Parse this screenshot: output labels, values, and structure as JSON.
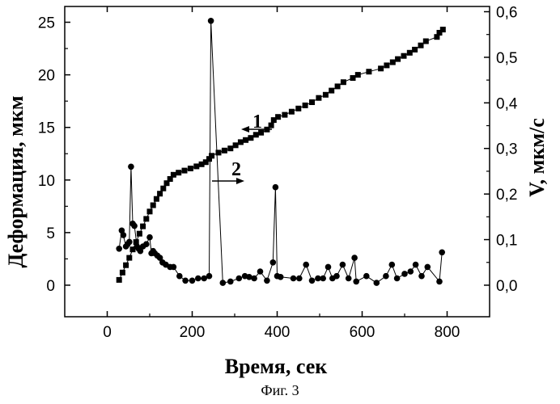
{
  "caption": "Фиг. 3",
  "chart_data": {
    "type": "scatter",
    "xlabel": "Время, сек",
    "ylabel_left": "Деформация, мкм",
    "ylabel_right": "V, мкм/c",
    "xlim": [
      -100,
      900
    ],
    "ylim_left": [
      -3,
      26.5
    ],
    "ylim_right": [
      -0.0692,
      0.6115
    ],
    "x_ticks": [
      0,
      200,
      400,
      600,
      800
    ],
    "x_tick_labels": [
      "0",
      "200",
      "400",
      "600",
      "800"
    ],
    "y_left_ticks": [
      0,
      5,
      10,
      15,
      20,
      25
    ],
    "y_left_tick_labels": [
      "0",
      "5",
      "10",
      "15",
      "20",
      "25"
    ],
    "y_right_ticks": [
      0,
      0.1,
      0.2,
      0.3,
      0.4,
      0.5,
      0.6
    ],
    "y_right_tick_labels": [
      "0,0",
      "0,1",
      "0,2",
      "0,3",
      "0,4",
      "0,5",
      "0,6"
    ],
    "grid": false,
    "legend": "none",
    "annotations": [
      {
        "text": "1",
        "points_to": "left axis"
      },
      {
        "text": "2",
        "points_to": "right axis"
      }
    ],
    "series": [
      {
        "label": "1",
        "axis": "left",
        "marker": "square",
        "x": [
          28,
          36,
          44,
          52,
          60,
          68,
          76,
          84,
          92,
          100,
          108,
          116,
          124,
          132,
          140,
          148,
          156,
          168,
          182,
          196,
          210,
          222,
          232,
          240,
          246,
          262,
          276,
          290,
          302,
          314,
          326,
          338,
          350,
          362,
          376,
          386,
          392,
          402,
          418,
          434,
          450,
          466,
          482,
          498,
          514,
          528,
          542,
          556,
          578,
          590,
          616,
          644,
          658,
          672,
          684,
          698,
          712,
          724,
          738,
          750,
          776,
          782,
          790
        ],
        "y": [
          0.5,
          1.2,
          1.9,
          2.6,
          3.4,
          4.1,
          4.9,
          5.6,
          6.3,
          7.0,
          7.6,
          8.2,
          8.7,
          9.2,
          9.7,
          10.1,
          10.5,
          10.7,
          10.9,
          11.1,
          11.3,
          11.5,
          11.7,
          12.0,
          12.3,
          12.6,
          12.8,
          13.0,
          13.3,
          13.6,
          13.8,
          14.0,
          14.3,
          14.5,
          14.8,
          15.2,
          15.7,
          16.0,
          16.2,
          16.5,
          16.8,
          17.1,
          17.4,
          17.8,
          18.1,
          18.5,
          18.9,
          19.3,
          19.7,
          20.0,
          20.3,
          20.6,
          20.9,
          21.2,
          21.5,
          21.8,
          22.1,
          22.4,
          22.8,
          23.2,
          23.6,
          24.0,
          24.3
        ]
      },
      {
        "label": "2",
        "axis": "right",
        "marker": "circle",
        "x": [
          28,
          34,
          38,
          44,
          48,
          52,
          56,
          60,
          64,
          70,
          74,
          78,
          84,
          92,
          100,
          104,
          108,
          112,
          118,
          124,
          130,
          138,
          148,
          156,
          170,
          184,
          200,
          214,
          228,
          240,
          244,
          272,
          290,
          310,
          324,
          334,
          346,
          360,
          376,
          390,
          396,
          400,
          408,
          438,
          452,
          468,
          482,
          496,
          508,
          520,
          530,
          540,
          554,
          568,
          582,
          586,
          610,
          634,
          656,
          670,
          682,
          700,
          714,
          726,
          740,
          754,
          782,
          788
        ],
        "y": [
          0.08,
          0.12,
          0.11,
          0.085,
          0.09,
          0.095,
          0.26,
          0.135,
          0.13,
          0.085,
          0.08,
          0.075,
          0.085,
          0.09,
          0.105,
          0.07,
          0.075,
          0.07,
          0.065,
          0.06,
          0.05,
          0.045,
          0.04,
          0.04,
          0.02,
          0.01,
          0.01,
          0.015,
          0.015,
          0.02,
          0.58,
          0.005,
          0.008,
          0.015,
          0.02,
          0.018,
          0.015,
          0.03,
          0.01,
          0.05,
          0.215,
          0.02,
          0.018,
          0.015,
          0.015,
          0.045,
          0.01,
          0.015,
          0.015,
          0.04,
          0.015,
          0.02,
          0.045,
          0.015,
          0.06,
          0.008,
          0.02,
          0.005,
          0.02,
          0.045,
          0.015,
          0.025,
          0.03,
          0.045,
          0.02,
          0.04,
          0.008,
          0.072
        ]
      }
    ]
  }
}
